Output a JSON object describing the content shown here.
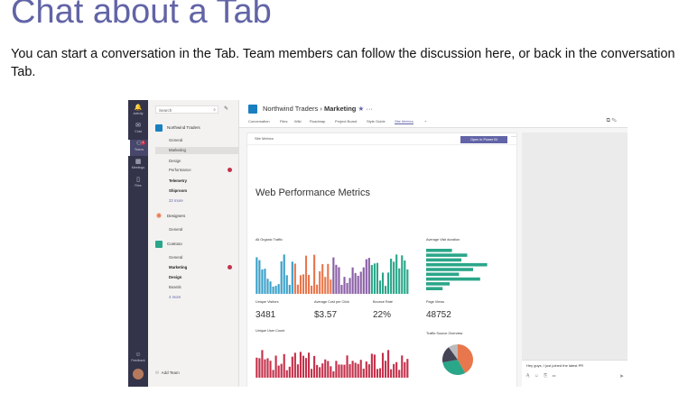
{
  "slide": {
    "title": "Chat about a Tab",
    "body": "You can start a conversation in the Tab. Team members can follow the discussion here, or back in the conversation Tab."
  },
  "rail": {
    "items": [
      {
        "label": "Activity",
        "icon": "bell-icon",
        "glyph": "🔔"
      },
      {
        "label": "Chat",
        "icon": "chat-icon",
        "glyph": "✉"
      },
      {
        "label": "Teams",
        "icon": "teams-icon",
        "glyph": "⚇",
        "badge": "1"
      },
      {
        "label": "Meetings",
        "icon": "calendar-icon",
        "glyph": "▦"
      },
      {
        "label": "Files",
        "icon": "file-icon",
        "glyph": "▯"
      }
    ],
    "feedback_label": "Feedback"
  },
  "teams_panel": {
    "search_placeholder": "Search",
    "teams": [
      {
        "name": "Northwind Traders",
        "color": "#1a7fc1",
        "channels": [
          "General",
          "Marketing",
          "Design",
          "Performance",
          "Telemetry",
          "Shiproom",
          "22 more"
        ]
      },
      {
        "name": "Designers",
        "color": "#e8774d",
        "channels": [
          "General"
        ]
      },
      {
        "name": "Contoso",
        "color": "#2aa689",
        "channels": [
          "General",
          "Marketing",
          "Design",
          "Boards",
          "4 more"
        ]
      }
    ],
    "add_team": "Add Team"
  },
  "header": {
    "team": "Northwind Traders",
    "separator": "›",
    "channel": "Marketing",
    "star": "★",
    "more": "···",
    "tabs": [
      "Conversation",
      "Files",
      "Wiki",
      "Roadmap",
      "Project Board",
      "Style Guide",
      "Site Metrics",
      "+"
    ],
    "active_tab": "Site Metrics"
  },
  "report": {
    "name": "Site Metrics",
    "open_button": "Open in Power BI",
    "more": "···",
    "title": "Web Performance Metrics",
    "tiles": {
      "organic_traffic": "All Organic Traffic",
      "avg_visit_duration": "Average Visit duration",
      "unique_visitors": "Unique Visitors",
      "avg_cost_per_click": "Average Cost per Click",
      "bounce_rate": "Bounce Rate",
      "page_views": "Page Views",
      "unique_user_count": "Unique User Count",
      "traffic_source": "Traffic Source Overview"
    },
    "kpis": {
      "unique_visitors": "3481",
      "avg_cost_per_click": "$3.57",
      "bounce_rate": "22%",
      "page_views": "48752"
    }
  },
  "chat": {
    "message": "Hey guys, I just joined the latest PR"
  },
  "chart_data": [
    {
      "type": "bar",
      "name": "All Organic Traffic",
      "bars": 56,
      "colors": [
        "#3aa0c8",
        "#e8774d",
        "#8a5fa6",
        "#2aa689"
      ]
    },
    {
      "type": "bar",
      "name": "Average Visit duration",
      "orientation": "horizontal",
      "values": [
        22,
        35,
        30,
        52,
        40,
        28,
        46,
        20,
        14
      ],
      "color": "#2aa689"
    },
    {
      "type": "bar",
      "name": "Unique User Count",
      "bars": 56,
      "color": "#c4314b"
    },
    {
      "type": "pie",
      "name": "Traffic Source Overview",
      "values": [
        42,
        30,
        18,
        10
      ],
      "colors": [
        "#e8774d",
        "#2aa689",
        "#444455",
        "#bbbbbb"
      ]
    }
  ]
}
